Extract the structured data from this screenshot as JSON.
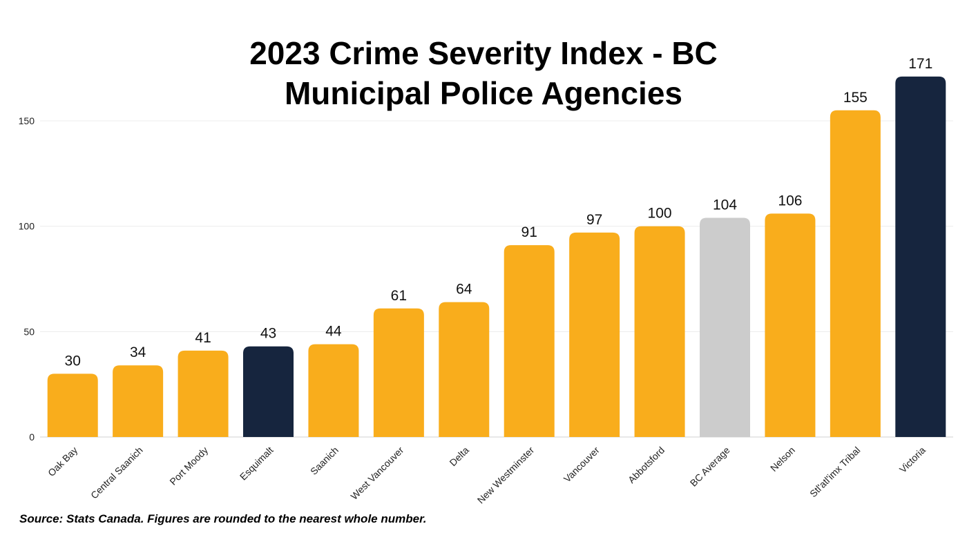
{
  "chart_data": {
    "type": "bar",
    "title": [
      "2023 Crime Severity Index - BC",
      "Municipal Police Agencies"
    ],
    "xlabel": "",
    "ylabel": "",
    "ylim": [
      0,
      172
    ],
    "yticks": [
      0,
      50,
      100,
      150
    ],
    "grid": true,
    "categories": [
      "Oak Bay",
      "Central Saanich",
      "Port Moody",
      "Esquimalt",
      "Saanich",
      "West Vancouver",
      "Delta",
      "New Westminster",
      "Vancouver",
      "Abbotsford",
      "BC Average",
      "Nelson",
      "Stl'atl'imx Tribal",
      "Victoria"
    ],
    "values": [
      30,
      34,
      41,
      43,
      44,
      61,
      64,
      91,
      97,
      100,
      104,
      106,
      155,
      171
    ],
    "data_labels": [
      "30",
      "34",
      "41",
      "43",
      "44",
      "61",
      "64",
      "91",
      "97",
      "100",
      "104",
      "106",
      "155",
      "171"
    ],
    "bar_colors": [
      "#f9ad1c",
      "#f9ad1c",
      "#f9ad1c",
      "#16253e",
      "#f9ad1c",
      "#f9ad1c",
      "#f9ad1c",
      "#f9ad1c",
      "#f9ad1c",
      "#f9ad1c",
      "#cccccc",
      "#f9ad1c",
      "#f9ad1c",
      "#16253e"
    ],
    "legend": "none"
  },
  "footer": {
    "source": "Source: Stats Canada. Figures are rounded to the nearest whole number."
  }
}
